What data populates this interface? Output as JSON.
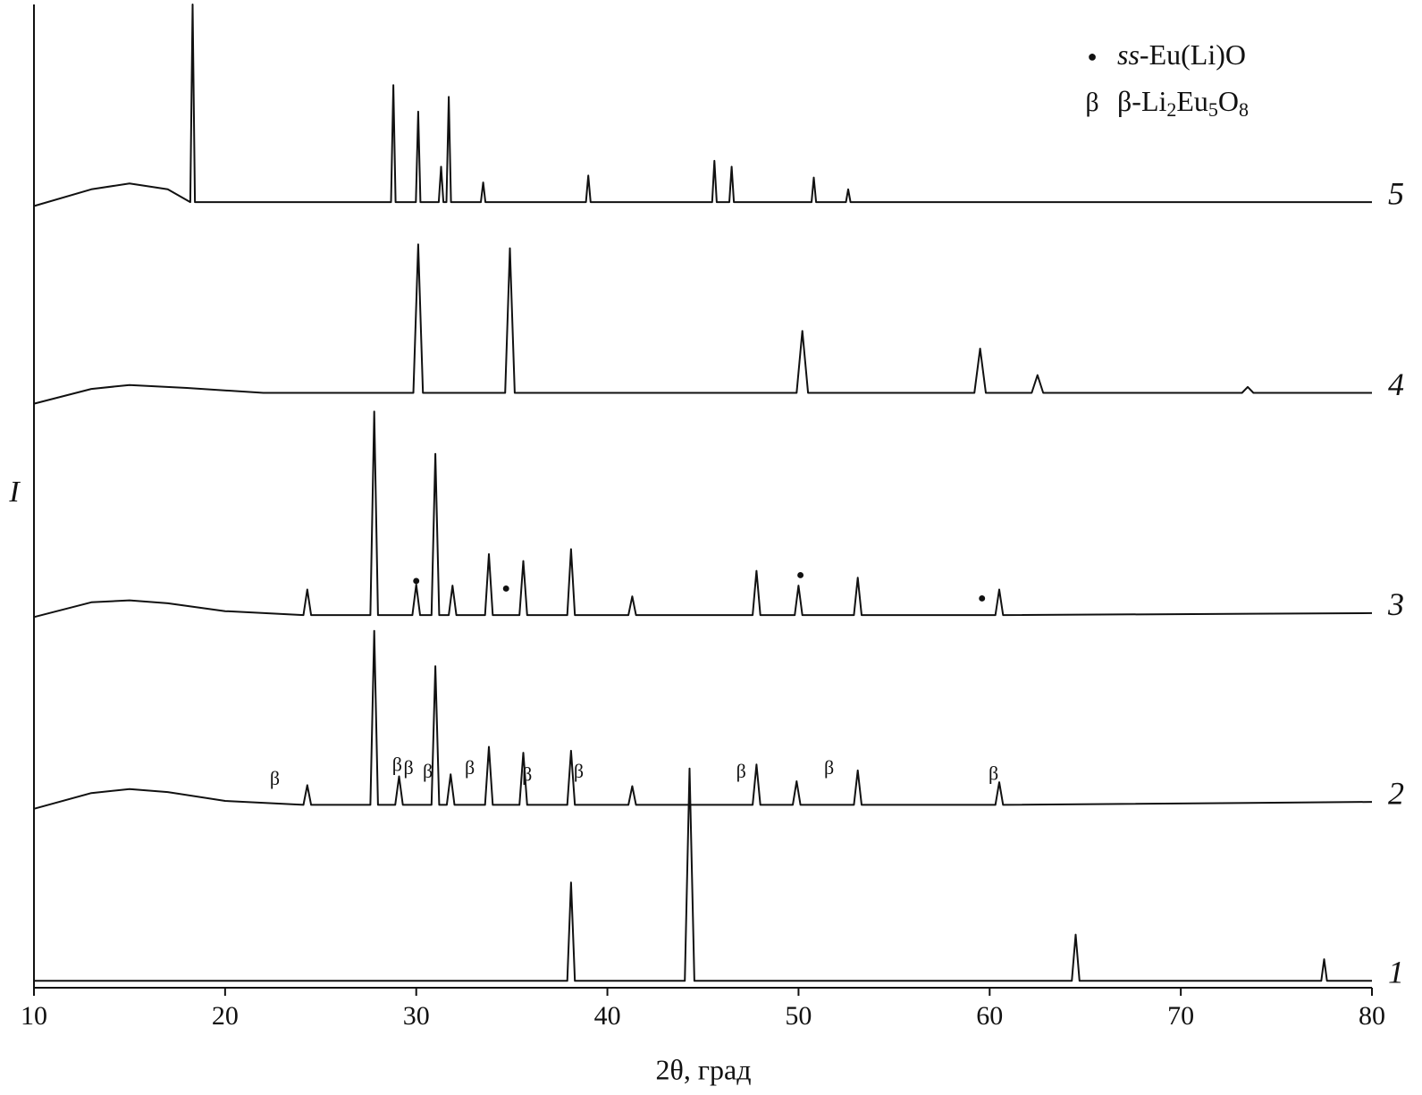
{
  "chart_data": {
    "type": "line",
    "x_label": "2θ, град",
    "y_label": "I",
    "xlim": [
      10,
      80
    ],
    "xticks": [
      10,
      20,
      30,
      40,
      50,
      60,
      70,
      80
    ],
    "ylim": [
      0,
      100
    ],
    "series": [
      {
        "name": "1",
        "color": "#111111",
        "x": [
          10,
          37.9,
          38.1,
          38.3,
          44.05,
          44.3,
          44.55,
          64.3,
          64.5,
          64.7,
          77.35,
          77.5,
          77.65,
          80
        ],
        "values": [
          0.7,
          0.7,
          10.7,
          0.7,
          0.7,
          22.3,
          0.7,
          0.7,
          5.4,
          0.7,
          0.7,
          2.9,
          0.7,
          0.7
        ]
      },
      {
        "name": "2",
        "color": "#111111",
        "x": [
          10,
          13,
          15,
          17,
          20,
          24.1,
          24.3,
          24.5,
          27.6,
          27.8,
          28.0,
          28.9,
          29.1,
          29.3,
          30.8,
          31.0,
          31.2,
          31.6,
          31.8,
          32.0,
          33.6,
          33.8,
          34.0,
          35.4,
          35.6,
          35.8,
          37.9,
          38.1,
          38.3,
          41.1,
          41.3,
          41.5,
          47.6,
          47.8,
          48.0,
          49.7,
          49.9,
          50.1,
          52.9,
          53.1,
          53.3,
          60.3,
          60.5,
          60.7,
          80
        ],
        "values": [
          18.2,
          19.8,
          20.2,
          19.9,
          19.0,
          18.6,
          20.6,
          18.6,
          18.6,
          36.3,
          18.6,
          18.6,
          21.5,
          18.6,
          18.6,
          32.7,
          18.6,
          18.6,
          21.7,
          18.6,
          18.6,
          24.5,
          18.6,
          18.6,
          23.9,
          18.6,
          18.6,
          24.1,
          18.6,
          18.6,
          20.5,
          18.6,
          18.6,
          22.7,
          18.6,
          18.6,
          21.0,
          18.6,
          18.6,
          22.1,
          18.6,
          18.6,
          20.9,
          18.6,
          18.9
        ]
      },
      {
        "name": "3",
        "color": "#111111",
        "x": [
          10,
          13,
          15,
          17,
          20,
          24.1,
          24.3,
          24.5,
          27.6,
          27.8,
          28.0,
          29.8,
          30.0,
          30.2,
          30.8,
          31.0,
          31.2,
          31.7,
          31.9,
          32.1,
          33.6,
          33.8,
          34.0,
          35.4,
          35.6,
          35.8,
          37.9,
          38.1,
          38.3,
          41.1,
          41.3,
          41.5,
          47.6,
          47.8,
          48.0,
          49.8,
          50.0,
          50.2,
          52.9,
          53.1,
          53.3,
          60.3,
          60.5,
          60.7,
          80
        ],
        "values": [
          37.7,
          39.2,
          39.4,
          39.1,
          38.3,
          37.9,
          40.5,
          37.9,
          37.9,
          58.6,
          37.9,
          37.9,
          41.0,
          37.9,
          37.9,
          54.3,
          37.9,
          37.9,
          40.9,
          37.9,
          37.9,
          44.1,
          37.9,
          37.9,
          43.4,
          37.9,
          37.9,
          44.6,
          37.9,
          37.9,
          39.8,
          37.9,
          37.9,
          42.4,
          37.9,
          37.9,
          40.9,
          37.9,
          37.9,
          41.7,
          37.9,
          37.9,
          40.5,
          37.9,
          38.1
        ]
      },
      {
        "name": "4",
        "color": "#111111",
        "x": [
          10,
          13,
          15,
          18,
          22,
          29.85,
          30.1,
          30.35,
          34.65,
          34.9,
          35.15,
          49.9,
          50.2,
          50.5,
          59.2,
          59.5,
          59.8,
          62.2,
          62.5,
          62.8,
          73.2,
          73.5,
          73.8,
          80
        ],
        "values": [
          59.4,
          60.9,
          61.3,
          61.0,
          60.5,
          60.5,
          75.6,
          60.5,
          60.5,
          75.2,
          60.5,
          60.5,
          66.8,
          60.5,
          60.5,
          65.0,
          60.5,
          60.5,
          62.3,
          60.5,
          60.5,
          61.1,
          60.5,
          60.5
        ]
      },
      {
        "name": "5",
        "color": "#111111",
        "x": [
          10,
          13,
          15,
          17,
          18.18,
          18.3,
          18.42,
          28.68,
          28.8,
          28.92,
          29.98,
          30.1,
          30.22,
          31.18,
          31.3,
          31.42,
          31.58,
          31.7,
          31.82,
          33.38,
          33.5,
          33.62,
          38.88,
          39.0,
          39.12,
          45.48,
          45.6,
          45.72,
          46.38,
          46.5,
          46.62,
          50.68,
          50.8,
          50.92,
          52.48,
          52.6,
          52.72,
          80
        ],
        "values": [
          79.5,
          81.2,
          81.8,
          81.2,
          79.9,
          100,
          79.9,
          79.9,
          91.8,
          79.9,
          79.9,
          89.1,
          79.9,
          79.9,
          83.5,
          79.9,
          79.9,
          90.6,
          79.9,
          79.9,
          81.9,
          79.9,
          79.9,
          82.6,
          79.9,
          79.9,
          84.1,
          79.9,
          79.9,
          83.5,
          79.9,
          79.9,
          82.4,
          79.9,
          79.9,
          81.2,
          79.9,
          79.9
        ]
      }
    ],
    "annotations": [
      {
        "text": "●",
        "x": 30.0,
        "y": 41.3
      },
      {
        "text": "●",
        "x": 34.7,
        "y": 40.5
      },
      {
        "text": "●",
        "x": 50.1,
        "y": 41.9
      },
      {
        "text": "●",
        "x": 59.6,
        "y": 39.5
      },
      {
        "text": "β",
        "x": 22.6,
        "y": 21.1
      },
      {
        "text": "β",
        "x": 29.0,
        "y": 22.5
      },
      {
        "text": "β",
        "x": 29.6,
        "y": 22.2
      },
      {
        "text": "β",
        "x": 30.6,
        "y": 21.8
      },
      {
        "text": "β",
        "x": 32.8,
        "y": 22.2
      },
      {
        "text": "β",
        "x": 35.8,
        "y": 21.5
      },
      {
        "text": "β",
        "x": 38.5,
        "y": 21.8
      },
      {
        "text": "β",
        "x": 47.0,
        "y": 21.8
      },
      {
        "text": "β",
        "x": 51.6,
        "y": 22.2
      },
      {
        "text": "β",
        "x": 60.2,
        "y": 21.6
      }
    ],
    "legend": [
      {
        "symbol": "●",
        "parts": [
          {
            "text": "ss",
            "style": "italic"
          },
          {
            "text": "-Eu(Li)O"
          }
        ]
      },
      {
        "symbol": "β",
        "parts": [
          {
            "text": "β-Li"
          },
          {
            "text": "2",
            "style": "sub"
          },
          {
            "text": "Eu"
          },
          {
            "text": "5",
            "style": "sub"
          },
          {
            "text": "O"
          },
          {
            "text": "8",
            "style": "sub"
          }
        ]
      }
    ]
  }
}
